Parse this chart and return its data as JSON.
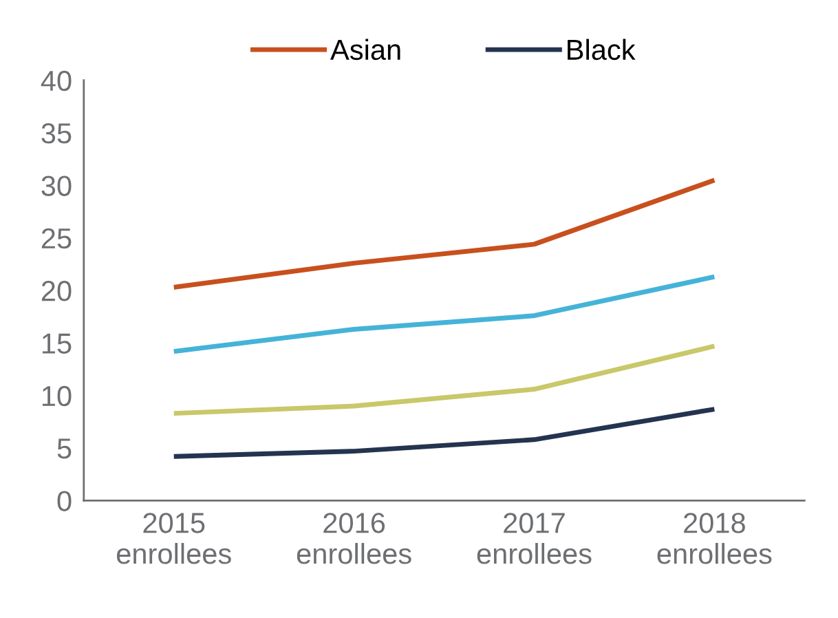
{
  "chart_data": {
    "type": "line",
    "categories": [
      "2015\nenrollees",
      "2016\nenrollees",
      "2017\nenrollees",
      "2018\nenrollees"
    ],
    "series": [
      {
        "name": "Asian",
        "color": "#c8501e",
        "values": [
          20.3,
          22.6,
          24.4,
          30.5
        ]
      },
      {
        "name": "Black",
        "color": "#24344f",
        "values": [
          4.2,
          4.7,
          5.8,
          8.7
        ]
      },
      {
        "color": "#c9c86a",
        "values": [
          8.3,
          9.0,
          10.6,
          14.7
        ]
      },
      {
        "color": "#45b3d8",
        "values": [
          14.2,
          16.3,
          17.6,
          21.3
        ]
      }
    ],
    "ylim": [
      0,
      40
    ],
    "yticks": [
      0,
      5,
      10,
      15,
      20,
      25,
      30,
      35,
      40
    ],
    "grid": false,
    "legend": "top",
    "marker": "none",
    "line_style": "solid"
  }
}
